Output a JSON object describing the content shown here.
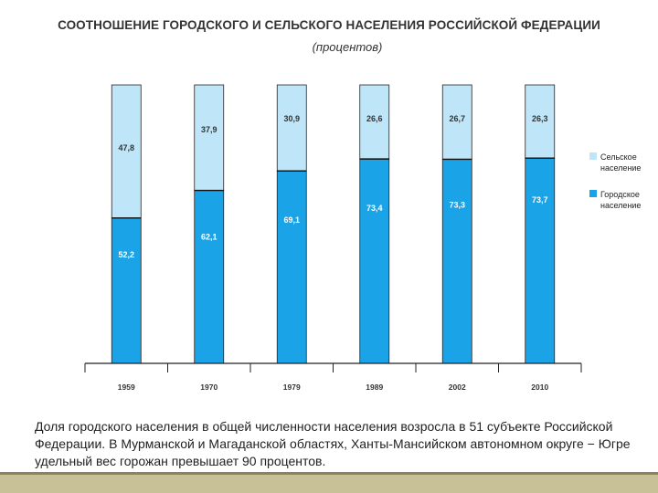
{
  "chart_data": {
    "type": "bar",
    "stacked": true,
    "title": "СООТНОШЕНИЕ ГОРОДСКОГО И СЕЛЬСКОГО НАСЕЛЕНИЯ РОССИЙСКОЙ ФЕДЕРАЦИИ",
    "subtitle": "(процентов)",
    "categories": [
      "1959",
      "1970",
      "1979",
      "1989",
      "2002",
      "2010"
    ],
    "series": [
      {
        "name": "Городское население",
        "color": "#1aa3e6",
        "values": [
          52.2,
          62.1,
          69.1,
          73.4,
          73.3,
          73.7
        ],
        "labels": [
          "52,2",
          "62,1",
          "69,1",
          "73,4",
          "73,3",
          "73,7"
        ]
      },
      {
        "name": "Сельское население",
        "color": "#bfe6f8",
        "values": [
          47.8,
          37.9,
          30.9,
          26.6,
          26.7,
          26.3
        ],
        "labels": [
          "47,8",
          "37,9",
          "30,9",
          "26,6",
          "26,7",
          "26,3"
        ]
      }
    ],
    "ylim": [
      0,
      100
    ],
    "xlabel": "",
    "ylabel": "",
    "legend_position": "right"
  },
  "legend": {
    "rural": "Сельское население",
    "urban": "Городское население"
  },
  "caption": "Доля городского населения в общей численности населения возросла в 51 субъекте Российской Федерации. В Мурманской и Магаданской областях, Ханты-Мансийском автономном округе − Югре удельный вес горожан превышает 90 процентов."
}
